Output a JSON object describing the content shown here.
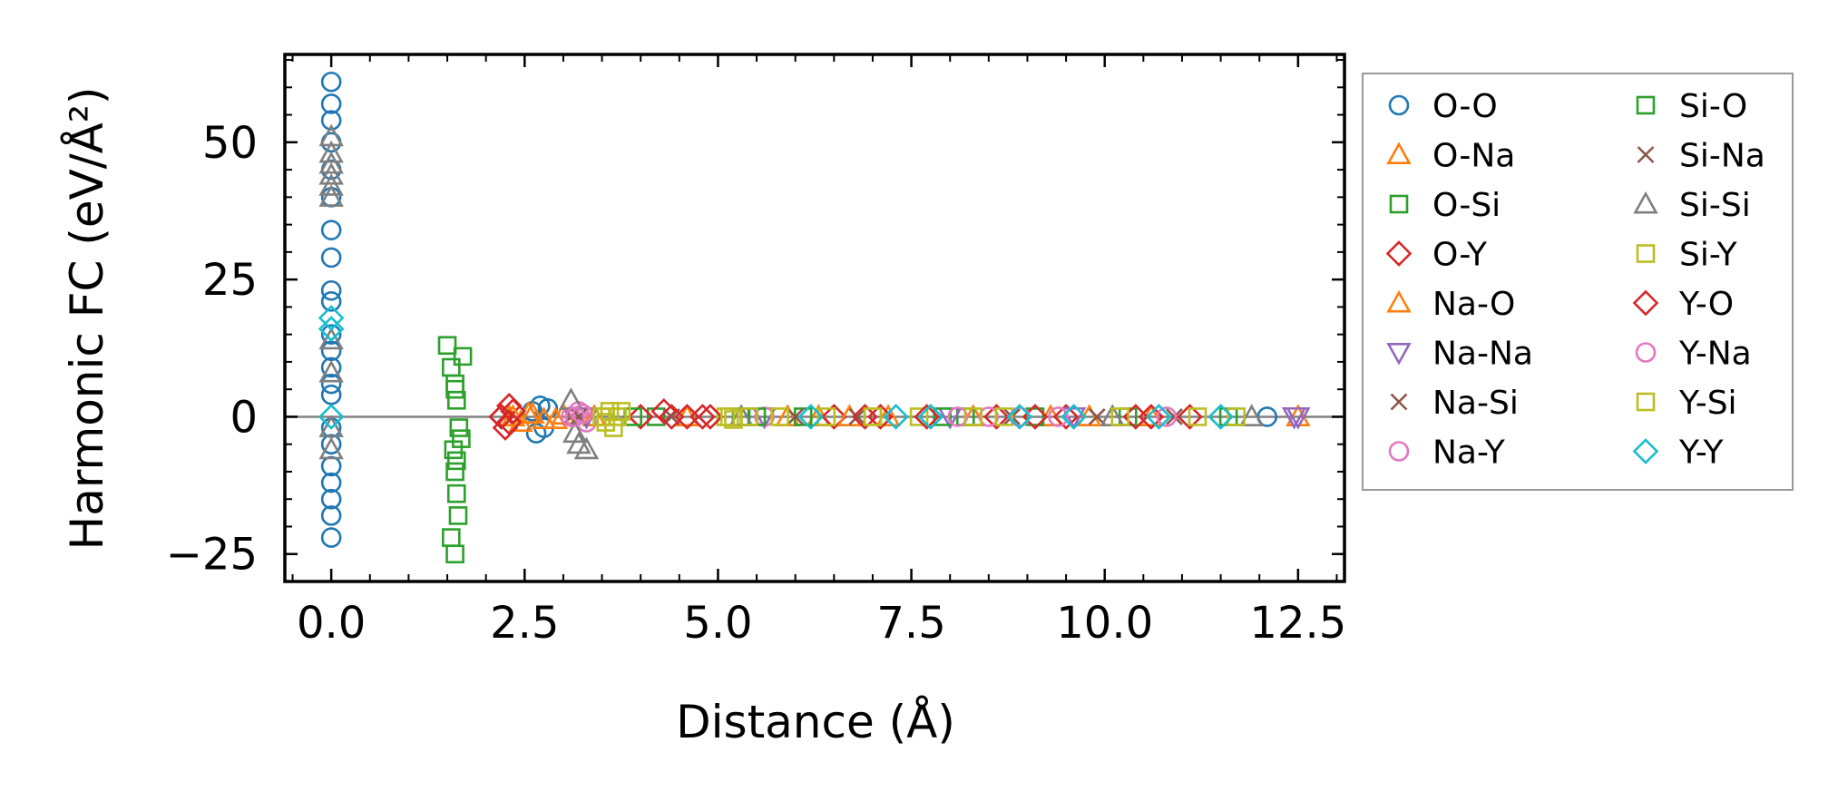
{
  "chart_data": {
    "type": "scatter",
    "xlabel": "Distance (Å)",
    "ylabel": "Harmonic FC (eV/Å²)",
    "xlim": [
      -0.6,
      13.1
    ],
    "ylim": [
      -30,
      66
    ],
    "xticks": [
      0.0,
      2.5,
      5.0,
      7.5,
      10.0,
      12.5
    ],
    "xtick_labels": [
      "0.0",
      "2.5",
      "5.0",
      "7.5",
      "10.0",
      "12.5"
    ],
    "yticks": [
      -25,
      0,
      25,
      50
    ],
    "ytick_labels": [
      "−25",
      "0",
      "25",
      "50"
    ],
    "zero_line": true,
    "legend_position": "outside-right",
    "series": [
      {
        "name": "O-O",
        "color": "#1f77b4",
        "marker": "circle",
        "points": [
          [
            0,
            61
          ],
          [
            0,
            57
          ],
          [
            0,
            54
          ],
          [
            0,
            50
          ],
          [
            0,
            45
          ],
          [
            0,
            40
          ],
          [
            0,
            34
          ],
          [
            0,
            29
          ],
          [
            0,
            23
          ],
          [
            0,
            21
          ],
          [
            0,
            15
          ],
          [
            0,
            12
          ],
          [
            0,
            9
          ],
          [
            0,
            6
          ],
          [
            0,
            4
          ],
          [
            0,
            -2
          ],
          [
            0,
            -5
          ],
          [
            0,
            -9
          ],
          [
            0,
            -12
          ],
          [
            0,
            -15
          ],
          [
            0,
            -18
          ],
          [
            0,
            -22
          ],
          [
            2.6,
            1
          ],
          [
            2.65,
            -3
          ],
          [
            2.7,
            2
          ],
          [
            2.75,
            -2
          ],
          [
            2.8,
            1.5
          ],
          [
            12.1,
            0
          ]
        ]
      },
      {
        "name": "O-Na",
        "color": "#ff7f0e",
        "marker": "triangle-up",
        "points": [
          [
            2.3,
            0
          ],
          [
            2.45,
            -1
          ],
          [
            2.6,
            0.5
          ],
          [
            2.9,
            -0.5
          ],
          [
            3.0,
            0.3
          ],
          [
            3.4,
            0
          ],
          [
            4.6,
            0
          ],
          [
            5.9,
            0
          ],
          [
            6.3,
            0
          ],
          [
            7.2,
            0
          ],
          [
            8.3,
            0
          ],
          [
            9.3,
            0
          ],
          [
            10.6,
            0
          ],
          [
            12.5,
            0
          ]
        ]
      },
      {
        "name": "O-Si",
        "color": "#2ca02c",
        "marker": "square",
        "points": [
          [
            1.5,
            13
          ],
          [
            1.55,
            9
          ],
          [
            1.6,
            6
          ],
          [
            1.62,
            3
          ],
          [
            1.65,
            -2
          ],
          [
            1.58,
            -6
          ],
          [
            1.6,
            -10
          ],
          [
            1.62,
            -14
          ],
          [
            1.64,
            -18
          ],
          [
            1.55,
            -22
          ],
          [
            1.6,
            -25
          ],
          [
            1.7,
            11
          ],
          [
            1.68,
            -4
          ],
          [
            4.2,
            0
          ],
          [
            5.3,
            0
          ],
          [
            6.1,
            0
          ],
          [
            8.2,
            0
          ],
          [
            9.1,
            0
          ],
          [
            10.3,
            0
          ],
          [
            11.6,
            0
          ]
        ]
      },
      {
        "name": "O-Y",
        "color": "#d62728",
        "marker": "diamond",
        "points": [
          [
            2.2,
            0
          ],
          [
            2.25,
            -2
          ],
          [
            2.3,
            2
          ],
          [
            4.0,
            0
          ],
          [
            4.3,
            1
          ],
          [
            4.6,
            0
          ],
          [
            4.8,
            0
          ],
          [
            6.5,
            0
          ],
          [
            7.1,
            0
          ],
          [
            8.6,
            0
          ],
          [
            9.5,
            0
          ],
          [
            10.4,
            0
          ],
          [
            11.1,
            0
          ]
        ]
      },
      {
        "name": "Na-O",
        "color": "#ff7f0e",
        "marker": "triangle-up",
        "points": [
          [
            2.35,
            0
          ],
          [
            2.55,
            0.5
          ],
          [
            2.75,
            -0.5
          ],
          [
            6.7,
            0
          ],
          [
            9.8,
            0
          ]
        ]
      },
      {
        "name": "Na-Na",
        "color": "#9467bd",
        "marker": "triangle-down",
        "points": [
          [
            3.3,
            0
          ],
          [
            5.6,
            0
          ],
          [
            8.0,
            0
          ],
          [
            9.6,
            0
          ],
          [
            12.5,
            0
          ],
          [
            12.45,
            0
          ]
        ]
      },
      {
        "name": "Na-Si",
        "color": "#8c564b",
        "marker": "x",
        "points": [
          [
            3.1,
            0
          ],
          [
            4.4,
            0
          ],
          [
            6.0,
            0
          ],
          [
            8.8,
            0
          ],
          [
            10.9,
            0
          ]
        ]
      },
      {
        "name": "Na-Y",
        "color": "#e377c2",
        "marker": "circle",
        "points": [
          [
            3.1,
            0
          ],
          [
            3.2,
            1
          ],
          [
            3.3,
            -1
          ],
          [
            5.6,
            0
          ],
          [
            8.5,
            0
          ],
          [
            9.4,
            0
          ]
        ]
      },
      {
        "name": "Si-O",
        "color": "#2ca02c",
        "marker": "square",
        "points": [
          [
            1.6,
            5
          ],
          [
            1.62,
            -8
          ],
          [
            3.9,
            0
          ],
          [
            5.5,
            0
          ],
          [
            7.9,
            0
          ]
        ]
      },
      {
        "name": "Si-Na",
        "color": "#8c564b",
        "marker": "x",
        "points": [
          [
            3.2,
            0
          ],
          [
            6.8,
            0
          ],
          [
            9.9,
            0
          ]
        ]
      },
      {
        "name": "Si-Si",
        "color": "#7f7f7f",
        "marker": "triangle-up",
        "points": [
          [
            0,
            51
          ],
          [
            0,
            48
          ],
          [
            0,
            46
          ],
          [
            0,
            44
          ],
          [
            0,
            42
          ],
          [
            0,
            40
          ],
          [
            0,
            14
          ],
          [
            0,
            8
          ],
          [
            0,
            -2
          ],
          [
            0,
            -6
          ],
          [
            3.1,
            3
          ],
          [
            3.15,
            -3
          ],
          [
            3.2,
            -5
          ],
          [
            3.3,
            -6
          ],
          [
            5.3,
            0
          ],
          [
            10.1,
            0
          ],
          [
            11.9,
            0
          ]
        ]
      },
      {
        "name": "Si-Y",
        "color": "#bcbd22",
        "marker": "square",
        "points": [
          [
            3.5,
            0
          ],
          [
            3.55,
            -1
          ],
          [
            3.6,
            1
          ],
          [
            3.7,
            0
          ],
          [
            5.1,
            0
          ],
          [
            5.2,
            -0.5
          ],
          [
            5.8,
            0
          ],
          [
            6.4,
            0
          ],
          [
            7.0,
            0
          ],
          [
            7.6,
            0
          ],
          [
            8.7,
            0
          ],
          [
            10.2,
            0
          ],
          [
            11.2,
            0
          ]
        ]
      },
      {
        "name": "Y-O",
        "color": "#d62728",
        "marker": "diamond",
        "points": [
          [
            2.2,
            0
          ],
          [
            2.3,
            -1
          ],
          [
            2.35,
            1
          ],
          [
            4.4,
            0
          ],
          [
            4.9,
            0
          ],
          [
            6.9,
            0
          ],
          [
            7.7,
            0
          ],
          [
            9.1,
            0
          ],
          [
            10.6,
            0
          ]
        ]
      },
      {
        "name": "Y-Na",
        "color": "#e377c2",
        "marker": "circle",
        "points": [
          [
            3.15,
            0
          ],
          [
            3.25,
            0.5
          ],
          [
            8.1,
            0
          ],
          [
            8.9,
            0
          ],
          [
            10.8,
            0
          ]
        ]
      },
      {
        "name": "Y-Si",
        "color": "#bcbd22",
        "marker": "square",
        "points": [
          [
            3.55,
            0
          ],
          [
            3.65,
            -2
          ],
          [
            3.75,
            1
          ],
          [
            5.15,
            0
          ],
          [
            5.4,
            0
          ],
          [
            7.0,
            0
          ],
          [
            8.3,
            0
          ],
          [
            11.7,
            0
          ]
        ]
      },
      {
        "name": "Y-Y",
        "color": "#17becf",
        "marker": "diamond",
        "points": [
          [
            0,
            18
          ],
          [
            0,
            16
          ],
          [
            0,
            0
          ],
          [
            6.2,
            0
          ],
          [
            7.3,
            0
          ],
          [
            7.75,
            0
          ],
          [
            8.9,
            0
          ],
          [
            9.6,
            0
          ],
          [
            10.7,
            0
          ],
          [
            11.5,
            0
          ]
        ]
      }
    ]
  }
}
